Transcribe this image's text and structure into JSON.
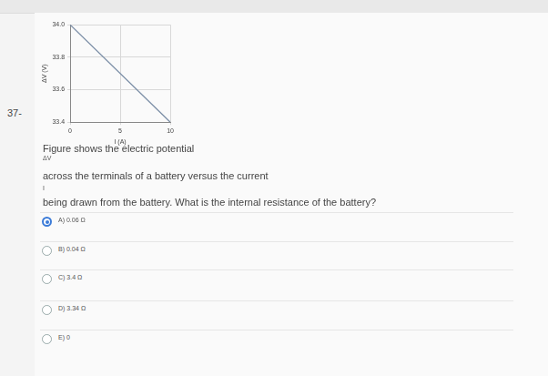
{
  "question": {
    "number": "37-",
    "lines": [
      "Figure shows the electric potential",
      "ΔV",
      "across the terminals of a battery versus the current",
      "I",
      "being drawn from the battery. What is the internal resistance of the battery?"
    ],
    "options": [
      "A)  0.06 Ω",
      "B)  0.04 Ω",
      "C)  3.4 Ω",
      "D)  3.34 Ω",
      "E)  0"
    ],
    "selected": 0
  },
  "chart_data": {
    "type": "line",
    "x_label": "I (A)",
    "y_label": "ΔV (V)",
    "x": [
      0,
      10
    ],
    "values": [
      34.0,
      33.4
    ],
    "color": "#7b8ea6",
    "xlim": [
      0,
      10
    ],
    "xticks": [
      0,
      5,
      10
    ],
    "ylim": [
      33.4,
      34.0
    ],
    "yticks": [
      33.4,
      33.6,
      33.8,
      {
        "value": 34.0,
        "label": "34.0"
      }
    ],
    "grid": true
  }
}
